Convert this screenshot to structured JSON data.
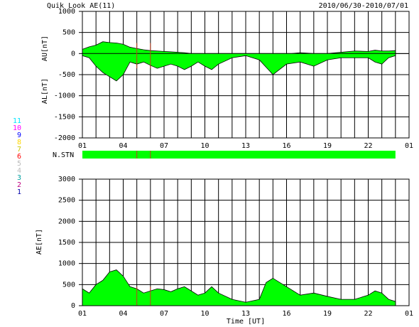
{
  "header": {
    "title": "Quik Look AE(11)",
    "date_range": "2010/06/30-2010/07/01"
  },
  "station_counts": {
    "labels": [
      "11",
      "10",
      "9",
      "8",
      "7",
      "6",
      "5",
      "4",
      "3",
      "2",
      "1"
    ],
    "colors": [
      "#00e5ff",
      "#ff00ff",
      "#0000ff",
      "#ffd700",
      "#c8c800",
      "#ff0000",
      "#bbbbbb",
      "#bbbbbb",
      "#00a0a0",
      "#c00080",
      "#0000aa"
    ]
  },
  "chart_data": [
    {
      "type": "area",
      "panel": "AU/AL",
      "ylabel_top": "AU[nT]",
      "ylabel_bottom": "AL[nT]",
      "ylim": [
        -2000,
        1000
      ],
      "yticks": [
        "1000",
        "500",
        "0",
        "-500",
        "-1000",
        "-1500",
        "-2000"
      ],
      "xlim": [
        0,
        24
      ],
      "xticks": [
        "01",
        "04",
        "07",
        "10",
        "13",
        "16",
        "19",
        "22",
        "01"
      ],
      "grid": true,
      "series": [
        {
          "name": "AU",
          "color": "#00ff00",
          "x": [
            0,
            0.5,
            1,
            1.5,
            2,
            2.5,
            3,
            3.5,
            4,
            4.5,
            5,
            5.5,
            6,
            6.5,
            7,
            7.5,
            8,
            8.5,
            9,
            9.5,
            10,
            11,
            12,
            13,
            14,
            15,
            16,
            17,
            18,
            19,
            20,
            21,
            21.5,
            22,
            22.5,
            23
          ],
          "values": [
            100,
            160,
            200,
            280,
            260,
            250,
            220,
            150,
            120,
            90,
            70,
            60,
            50,
            40,
            30,
            20,
            0,
            -20,
            -30,
            -40,
            -40,
            -40,
            -30,
            -20,
            -20,
            -10,
            20,
            0,
            0,
            30,
            60,
            50,
            80,
            60,
            60,
            70
          ]
        },
        {
          "name": "AL",
          "color": "#00ff00",
          "x": [
            0,
            0.5,
            1,
            1.5,
            2,
            2.5,
            3,
            3.5,
            4,
            4.5,
            5,
            5.5,
            6,
            6.5,
            7,
            7.5,
            8,
            8.5,
            9,
            9.5,
            10,
            11,
            12,
            13,
            14,
            15,
            16,
            17,
            18,
            19,
            20,
            21,
            21.5,
            22,
            22.5,
            23
          ],
          "values": [
            -50,
            -100,
            -300,
            -450,
            -550,
            -650,
            -500,
            -200,
            -250,
            -200,
            -280,
            -350,
            -300,
            -250,
            -300,
            -380,
            -300,
            -200,
            -300,
            -380,
            -250,
            -100,
            -50,
            -150,
            -500,
            -250,
            -200,
            -300,
            -150,
            -100,
            -100,
            -100,
            -200,
            -250,
            -100,
            -50
          ]
        }
      ],
      "markers_x": [
        4,
        5
      ]
    },
    {
      "type": "bar",
      "panel": "N.STN",
      "label": "N.STN",
      "xlim": [
        0,
        24
      ],
      "start": 0,
      "end": 23,
      "color": "#00ff00",
      "markers_x": [
        4,
        5
      ]
    },
    {
      "type": "area",
      "panel": "AE",
      "ylabel": "AE[nT]",
      "xlabel": "Time [UT]",
      "ylim": [
        0,
        3000
      ],
      "yticks": [
        "3000",
        "2500",
        "2000",
        "1500",
        "1000",
        "500",
        "0"
      ],
      "xlim": [
        0,
        24
      ],
      "xticks": [
        "01",
        "04",
        "07",
        "10",
        "13",
        "16",
        "19",
        "22",
        "01"
      ],
      "grid": true,
      "series": [
        {
          "name": "AE",
          "color": "#00ff00",
          "x": [
            0,
            0.5,
            1,
            1.5,
            2,
            2.5,
            3,
            3.5,
            4,
            4.5,
            5,
            5.5,
            6,
            6.5,
            7,
            7.5,
            8,
            8.5,
            9,
            9.5,
            10,
            11,
            12,
            13,
            13.5,
            14,
            15,
            16,
            17,
            18,
            19,
            20,
            21,
            21.5,
            22,
            22.5,
            23
          ],
          "values": [
            400,
            300,
            500,
            600,
            800,
            850,
            700,
            450,
            400,
            300,
            350,
            400,
            380,
            330,
            400,
            450,
            350,
            250,
            300,
            450,
            300,
            150,
            80,
            150,
            550,
            650,
            450,
            250,
            300,
            220,
            150,
            150,
            250,
            350,
            300,
            150,
            100
          ]
        }
      ],
      "markers_x": [
        4,
        5
      ]
    }
  ]
}
